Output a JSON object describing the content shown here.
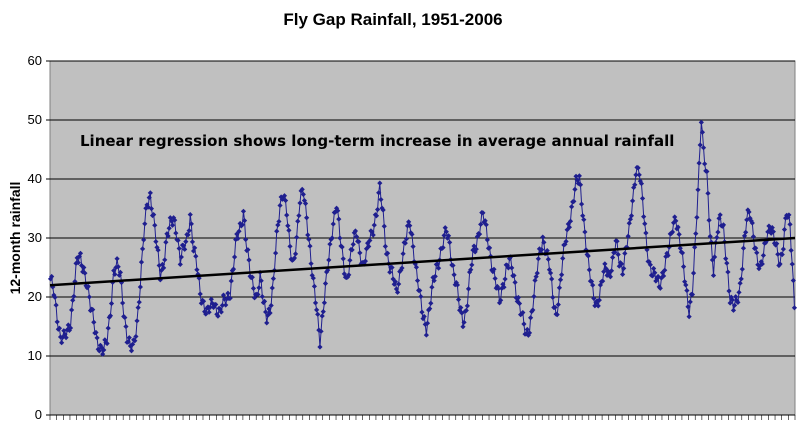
{
  "chart_data": {
    "type": "line",
    "title": "Fly Gap Rainfall, 1951-2006",
    "xlabel": "",
    "ylabel": "12-month rainfall",
    "ylim": [
      0,
      60
    ],
    "yticks": [
      0,
      10,
      20,
      30,
      40,
      50,
      60
    ],
    "grid": true,
    "annotation": "Linear regression shows long-term increase in average annual rainfall",
    "x_count": 672,
    "series": [
      {
        "marker": "diamond",
        "color": "#1f1f8f",
        "anchors": [
          [
            0,
            22.5
          ],
          [
            3,
            21
          ],
          [
            6,
            17
          ],
          [
            9,
            13
          ],
          [
            12,
            12.8
          ],
          [
            15,
            14
          ],
          [
            18,
            16
          ],
          [
            21,
            21
          ],
          [
            24,
            26
          ],
          [
            27,
            26.5
          ],
          [
            30,
            25
          ],
          [
            33,
            22
          ],
          [
            36,
            18
          ],
          [
            39,
            16
          ],
          [
            42,
            13
          ],
          [
            45,
            11
          ],
          [
            48,
            10.5
          ],
          [
            51,
            13
          ],
          [
            54,
            18
          ],
          [
            57,
            24
          ],
          [
            60,
            25
          ],
          [
            63,
            24
          ],
          [
            66,
            18
          ],
          [
            69,
            13
          ],
          [
            72,
            11
          ],
          [
            75,
            12
          ],
          [
            78,
            16
          ],
          [
            81,
            22
          ],
          [
            84,
            30
          ],
          [
            87,
            36
          ],
          [
            90,
            37.5
          ],
          [
            93,
            33
          ],
          [
            96,
            28
          ],
          [
            99,
            24
          ],
          [
            102,
            26
          ],
          [
            105,
            30
          ],
          [
            108,
            32
          ],
          [
            111,
            33.5
          ],
          [
            114,
            31
          ],
          [
            117,
            26
          ],
          [
            120,
            28
          ],
          [
            123,
            30
          ],
          [
            126,
            34
          ],
          [
            129,
            28
          ],
          [
            132,
            25
          ],
          [
            135,
            21
          ],
          [
            138,
            19
          ],
          [
            141,
            17
          ],
          [
            144,
            18
          ],
          [
            147,
            19.5
          ],
          [
            150,
            18
          ],
          [
            153,
            17
          ],
          [
            156,
            19
          ],
          [
            159,
            20
          ],
          [
            162,
            21
          ],
          [
            165,
            25
          ],
          [
            168,
            30
          ],
          [
            171,
            32
          ],
          [
            174,
            34.5
          ],
          [
            177,
            28
          ],
          [
            180,
            24
          ],
          [
            183,
            22
          ],
          [
            186,
            20
          ],
          [
            189,
            23
          ],
          [
            192,
            19
          ],
          [
            195,
            17
          ],
          [
            198,
            18
          ],
          [
            201,
            22
          ],
          [
            204,
            30
          ],
          [
            207,
            36
          ],
          [
            210,
            38
          ],
          [
            213,
            34
          ],
          [
            216,
            28
          ],
          [
            219,
            26
          ],
          [
            222,
            30
          ],
          [
            225,
            36
          ],
          [
            228,
            38
          ],
          [
            231,
            34
          ],
          [
            234,
            28
          ],
          [
            237,
            22
          ],
          [
            240,
            18
          ],
          [
            243,
            13
          ],
          [
            246,
            18
          ],
          [
            249,
            23
          ],
          [
            252,
            28
          ],
          [
            255,
            33
          ],
          [
            258,
            36
          ],
          [
            261,
            30
          ],
          [
            264,
            26
          ],
          [
            267,
            23
          ],
          [
            270,
            26
          ],
          [
            273,
            29
          ],
          [
            276,
            31
          ],
          [
            279,
            28
          ],
          [
            282,
            25
          ],
          [
            285,
            27
          ],
          [
            288,
            30
          ],
          [
            291,
            32
          ],
          [
            294,
            34
          ],
          [
            297,
            38
          ],
          [
            300,
            34
          ],
          [
            303,
            28
          ],
          [
            306,
            25
          ],
          [
            309,
            23
          ],
          [
            312,
            21
          ],
          [
            315,
            24
          ],
          [
            318,
            27
          ],
          [
            321,
            30
          ],
          [
            324,
            33
          ],
          [
            327,
            29
          ],
          [
            330,
            24
          ],
          [
            333,
            20
          ],
          [
            336,
            17
          ],
          [
            339,
            15
          ],
          [
            342,
            18
          ],
          [
            345,
            22
          ],
          [
            348,
            25
          ],
          [
            351,
            27
          ],
          [
            354,
            29
          ],
          [
            357,
            31
          ],
          [
            360,
            29
          ],
          [
            363,
            25
          ],
          [
            366,
            22
          ],
          [
            369,
            18
          ],
          [
            372,
            16
          ],
          [
            375,
            18
          ],
          [
            378,
            23
          ],
          [
            381,
            27
          ],
          [
            384,
            29
          ],
          [
            387,
            32
          ],
          [
            390,
            34
          ],
          [
            393,
            31
          ],
          [
            396,
            28
          ],
          [
            399,
            25
          ],
          [
            402,
            22
          ],
          [
            405,
            19
          ],
          [
            408,
            22
          ],
          [
            411,
            25
          ],
          [
            414,
            26
          ],
          [
            417,
            24
          ],
          [
            420,
            21
          ],
          [
            423,
            19
          ],
          [
            426,
            16
          ],
          [
            429,
            13
          ],
          [
            432,
            15
          ],
          [
            435,
            19
          ],
          [
            438,
            23
          ],
          [
            441,
            27
          ],
          [
            444,
            30
          ],
          [
            447,
            28
          ],
          [
            450,
            25
          ],
          [
            453,
            20
          ],
          [
            456,
            17
          ],
          [
            459,
            21
          ],
          [
            462,
            26
          ],
          [
            465,
            30
          ],
          [
            468,
            33
          ],
          [
            471,
            36
          ],
          [
            474,
            39
          ],
          [
            477,
            40
          ],
          [
            480,
            35
          ],
          [
            483,
            29
          ],
          [
            486,
            24
          ],
          [
            489,
            21
          ],
          [
            492,
            19
          ],
          [
            495,
            20
          ],
          [
            498,
            23
          ],
          [
            501,
            25
          ],
          [
            504,
            24
          ],
          [
            507,
            26
          ],
          [
            510,
            29
          ],
          [
            513,
            26
          ],
          [
            516,
            25
          ],
          [
            519,
            28
          ],
          [
            522,
            31
          ],
          [
            525,
            36
          ],
          [
            528,
            42
          ],
          [
            531,
            41.5
          ],
          [
            534,
            36
          ],
          [
            537,
            30
          ],
          [
            540,
            26
          ],
          [
            543,
            24
          ],
          [
            546,
            23
          ],
          [
            549,
            22
          ],
          [
            552,
            24
          ],
          [
            555,
            26
          ],
          [
            558,
            28
          ],
          [
            561,
            32
          ],
          [
            564,
            34
          ],
          [
            567,
            30
          ],
          [
            570,
            26
          ],
          [
            573,
            22
          ],
          [
            576,
            18
          ],
          [
            579,
            21
          ],
          [
            582,
            30
          ],
          [
            585,
            42
          ],
          [
            587,
            51
          ],
          [
            589,
            45
          ],
          [
            592,
            40
          ],
          [
            595,
            30
          ],
          [
            598,
            25
          ],
          [
            601,
            31
          ],
          [
            604,
            33
          ],
          [
            607,
            31
          ],
          [
            610,
            26
          ],
          [
            613,
            20
          ],
          [
            616,
            18
          ],
          [
            619,
            19
          ],
          [
            622,
            22
          ],
          [
            625,
            28
          ],
          [
            628,
            33
          ],
          [
            631,
            34
          ],
          [
            634,
            31
          ],
          [
            637,
            27
          ],
          [
            640,
            24
          ],
          [
            643,
            27
          ],
          [
            646,
            31
          ],
          [
            649,
            32
          ],
          [
            652,
            30
          ],
          [
            655,
            28
          ],
          [
            658,
            26
          ],
          [
            661,
            29
          ],
          [
            664,
            34
          ],
          [
            667,
            32
          ],
          [
            669,
            26
          ],
          [
            671,
            19
          ]
        ]
      }
    ],
    "trendline": {
      "color": "#000000",
      "start": 22,
      "end": 30
    }
  }
}
